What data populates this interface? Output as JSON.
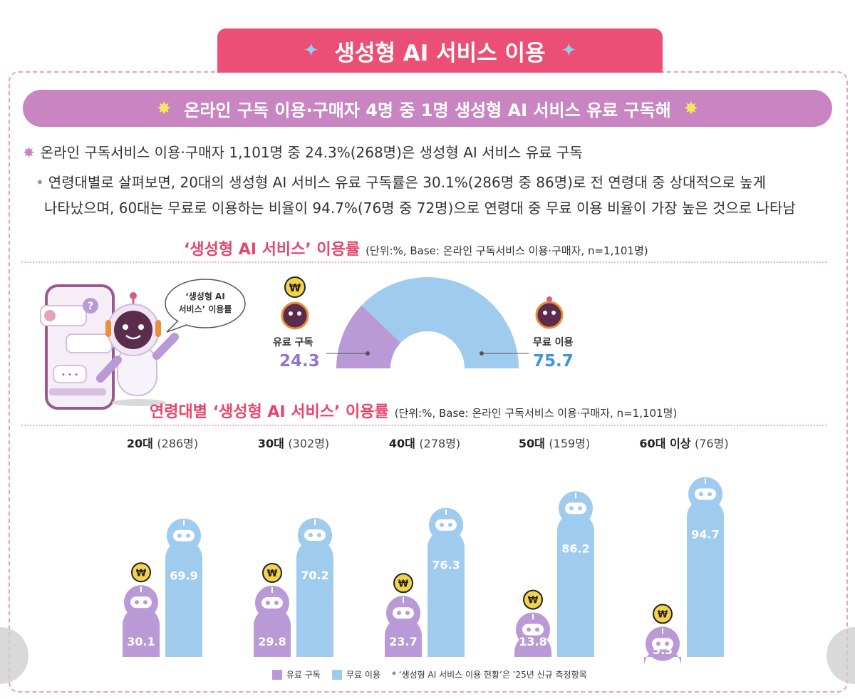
{
  "header": {
    "title": "생성형 AI 서비스 이용",
    "sparkle": "✦"
  },
  "banner": {
    "text": "온라인 구독 이용·구매자 4명 중 1명 생성형 AI 서비스 유료 구독해",
    "icon": "✸"
  },
  "bullets": {
    "main_marker": "✸",
    "main": "온라인 구독서비스 이용·구매자 1,101명 중 24.3%(268명)은 생성형 AI 서비스 유료 구독",
    "sub_marker": "•",
    "sub_line1": "연령대별로 살펴보면, 20대의 생성형 AI 서비스 유료 구독률은 30.1%(286명 중 86명)로 전 연령대 중 상대적으로 높게",
    "sub_line2": "나타났으며, 60대는 무료로 이용하는 비율이 94.7%(76명 중 72명)으로 연령대 중 무료 이용 비율이 가장 높은 것으로 나타남"
  },
  "section1": {
    "title": "‘생성형 AI 서비스’ 이용률",
    "note": "(단위:%, Base: 온라인 구독서비스 이용·구매자, n=1,101명)"
  },
  "section2": {
    "title": "연령대별 ‘생성형 AI 서비스’ 이용률",
    "note": "(단위:%, Base: 온라인 구독서비스 이용·구매자, n=1,101명)"
  },
  "illustration": {
    "speech": [
      "‘생성형 AI",
      "서비스’ 이용률"
    ],
    "coin_symbol": "₩",
    "chat_icon": "?",
    "typing": "• • •"
  },
  "colors": {
    "paid": "#b99ad6",
    "free": "#9fcbef",
    "accent": "#e8456e",
    "paid_text": "#9575c9",
    "free_text": "#3e95d6"
  },
  "chart_data": [
    {
      "type": "pie",
      "title": "‘생성형 AI 서비스’ 이용률",
      "labels": [
        "유료 구독",
        "무료 이용"
      ],
      "values": [
        24.3,
        75.7
      ]
    },
    {
      "type": "bar",
      "title": "연령대별 ‘생성형 AI 서비스’ 이용률",
      "categories": [
        "20대",
        "30대",
        "40대",
        "50대",
        "60대 이상"
      ],
      "category_notes": [
        "(286명)",
        "(302명)",
        "(278명)",
        "(159명)",
        "(76명)"
      ],
      "series": [
        {
          "name": "유료 구독",
          "values": [
            30.1,
            29.8,
            23.7,
            13.8,
            5.3
          ]
        },
        {
          "name": "무료 이용",
          "values": [
            69.9,
            70.2,
            76.3,
            86.2,
            94.7
          ]
        }
      ],
      "ylim": [
        0,
        100
      ],
      "legend": "bottom",
      "grid": false
    }
  ],
  "footnote": "* ‘생성형 AI 서비스 이용 현황’은 ’25년 신규 측정항목"
}
